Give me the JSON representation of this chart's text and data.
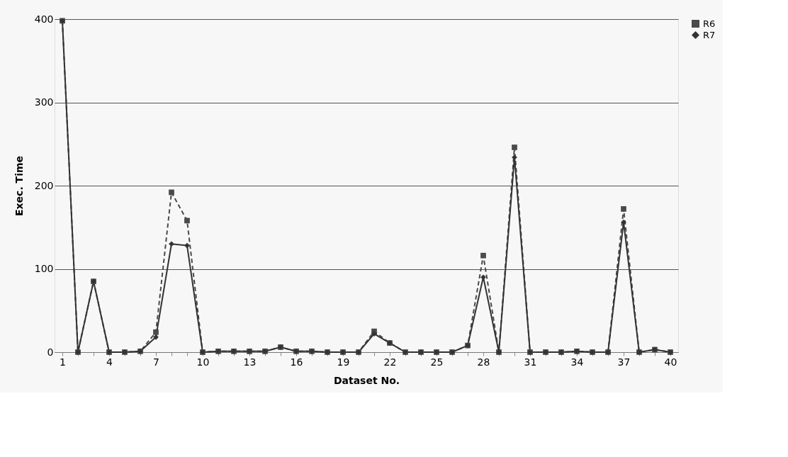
{
  "chart_data": {
    "type": "line",
    "xlabel": "Dataset No.",
    "ylabel": "Exec. Time",
    "categories": [
      "1",
      null,
      null,
      "4",
      null,
      null,
      "7",
      null,
      null,
      "10",
      null,
      null,
      "13",
      null,
      null,
      "16",
      null,
      null,
      "19",
      null,
      null,
      "22",
      null,
      null,
      "25",
      null,
      null,
      "28",
      null,
      null,
      "31",
      null,
      null,
      "34",
      null,
      null,
      "37",
      null,
      null,
      "40"
    ],
    "series": [
      {
        "name": "R6",
        "color": "#4a4a4a",
        "marker": "square",
        "line_style": "dashed",
        "values": [
          398,
          0,
          85,
          0,
          0,
          1,
          24,
          192,
          158,
          0,
          1,
          1,
          1,
          1,
          6,
          1,
          1,
          0,
          0,
          0,
          25,
          11,
          0,
          0,
          0,
          0,
          8,
          116,
          0,
          246,
          0,
          0,
          0,
          1,
          0,
          0,
          172,
          0,
          3,
          0
        ]
      },
      {
        "name": "R7",
        "color": "#333333",
        "marker": "diamond",
        "line_style": "solid",
        "values": [
          398,
          0,
          85,
          0,
          0,
          1,
          18,
          130,
          128,
          0,
          1,
          1,
          1,
          1,
          6,
          1,
          1,
          0,
          0,
          0,
          22,
          11,
          0,
          0,
          0,
          0,
          8,
          90,
          0,
          234,
          0,
          0,
          0,
          1,
          0,
          0,
          156,
          0,
          3,
          0
        ]
      }
    ],
    "ylim": [
      0,
      400
    ],
    "yticks": [
      0,
      100,
      200,
      300,
      400
    ],
    "grid": "y",
    "legend": "right"
  }
}
